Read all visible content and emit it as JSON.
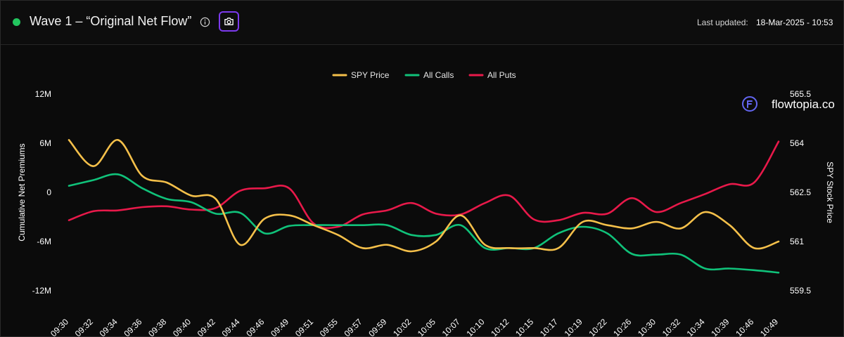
{
  "header": {
    "title": "Wave 1 – “Original Net Flow”",
    "last_updated_label": "Last updated:",
    "last_updated_value": "18-Mar-2025 - 10:53",
    "status_color": "#22c55e",
    "icons": [
      "info-icon",
      "camera-icon"
    ]
  },
  "brand": {
    "name": "flowtopia.co",
    "icon": "flowtopia-logo-icon",
    "color": "#6366f1"
  },
  "chart_data": {
    "type": "line",
    "legend_position": "top-center",
    "grid": false,
    "ylabel": "Cumulative Net Premiums",
    "y2label": "SPY Stock Price",
    "ylim": [
      -12000000,
      12000000
    ],
    "y2lim": [
      559.5,
      565.5
    ],
    "yticks": [
      "12M",
      "6M",
      "0",
      "-6M",
      "-12M"
    ],
    "yticks_values": [
      12000000,
      6000000,
      0,
      -6000000,
      -12000000
    ],
    "y2ticks": [
      "565.5",
      "564",
      "562.5",
      "561",
      "559.5"
    ],
    "y2ticks_values": [
      565.5,
      564,
      562.5,
      561,
      559.5
    ],
    "xticks": [
      "09:30",
      "09:32",
      "09:34",
      "09:36",
      "09:38",
      "09:40",
      "09:42",
      "09:44",
      "09:46",
      "09:49",
      "09:51",
      "09:55",
      "09:57",
      "09:59",
      "10:02",
      "10:05",
      "10:07",
      "10:10",
      "10:12",
      "10:15",
      "10:17",
      "10:19",
      "10:22",
      "10:26",
      "10:30",
      "10:32",
      "10:34",
      "10:39",
      "10:46",
      "10:49"
    ],
    "series": [
      {
        "name": "SPY Price",
        "axis": "right",
        "color": "#f5c04a",
        "values": [
          564.1,
          563.3,
          564.1,
          563.0,
          562.8,
          562.4,
          562.3,
          560.9,
          561.7,
          561.8,
          561.5,
          561.2,
          560.8,
          560.9,
          560.7,
          561.0,
          561.8,
          560.9,
          560.8,
          560.8,
          560.8,
          561.6,
          561.5,
          561.4,
          561.6,
          561.4,
          561.9,
          561.5,
          560.8,
          561.0
        ]
      },
      {
        "name": "All Calls",
        "axis": "left",
        "color": "#10c27a",
        "values": [
          800000,
          1500000,
          2200000,
          500000,
          -800000,
          -1200000,
          -2600000,
          -2500000,
          -5000000,
          -4100000,
          -4000000,
          -4000000,
          -4000000,
          -4000000,
          -5200000,
          -5200000,
          -4000000,
          -6800000,
          -6800000,
          -6800000,
          -5000000,
          -4200000,
          -5000000,
          -7500000,
          -7600000,
          -7600000,
          -9300000,
          -9300000,
          -9500000,
          -9800000
        ]
      },
      {
        "name": "All Puts",
        "axis": "left",
        "color": "#e8194a",
        "values": [
          -3400000,
          -2300000,
          -2200000,
          -1800000,
          -1700000,
          -2100000,
          -1900000,
          200000,
          500000,
          500000,
          -3800000,
          -4200000,
          -2700000,
          -2200000,
          -1300000,
          -2600000,
          -2700000,
          -1300000,
          -400000,
          -3300000,
          -3400000,
          -2500000,
          -2600000,
          -700000,
          -2400000,
          -1300000,
          -200000,
          1000000,
          1200000,
          6200000
        ]
      }
    ]
  }
}
